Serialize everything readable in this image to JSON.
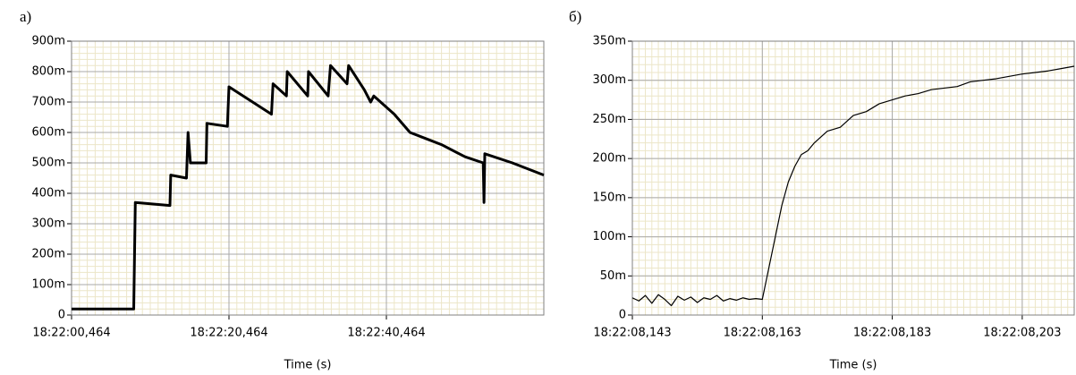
{
  "chart_data": [
    {
      "type": "line",
      "panel_label": "а)",
      "xlabel": "Time (s)",
      "grid": true,
      "minor_grid": true,
      "xlim": [
        66120.464,
        66180.464
      ],
      "xticks": [
        {
          "value": 66120.464,
          "label": "18:22:00,464"
        },
        {
          "value": 66140.464,
          "label": "18:22:20,464"
        },
        {
          "value": 66160.464,
          "label": "18:22:40,464"
        }
      ],
      "ylim": [
        0,
        0.9
      ],
      "yticks": [
        0,
        {
          "value": 0.1,
          "label": "100m"
        },
        {
          "value": 0.2,
          "label": "200m"
        },
        {
          "value": 0.3,
          "label": "300m"
        },
        {
          "value": 0.4,
          "label": "400m"
        },
        {
          "value": 0.5,
          "label": "500m"
        },
        {
          "value": 0.6,
          "label": "600m"
        },
        {
          "value": 0.7,
          "label": "700m"
        },
        {
          "value": 0.8,
          "label": "800m"
        },
        {
          "value": 0.9,
          "label": "900m"
        }
      ],
      "series": [
        {
          "color": "#000000",
          "x": [
            66120.464,
            66128.364,
            66128.564,
            66132.964,
            66133.064,
            66135.064,
            66135.264,
            66135.564,
            66137.564,
            66137.664,
            66140.264,
            66140.464,
            66143.464,
            66145.864,
            66146.064,
            66147.764,
            66147.864,
            66150.464,
            66150.564,
            66153.064,
            66153.364,
            66155.464,
            66155.664,
            66157.664,
            66158.464,
            66158.864,
            66161.464,
            66163.464,
            66165.464,
            66167.464,
            66170.464,
            66172.764,
            66172.864,
            66172.964,
            66176.464,
            66180.464
          ],
          "values": [
            0.02,
            0.02,
            0.37,
            0.36,
            0.46,
            0.45,
            0.6,
            0.5,
            0.5,
            0.63,
            0.62,
            0.75,
            0.7,
            0.66,
            0.76,
            0.72,
            0.8,
            0.72,
            0.8,
            0.72,
            0.82,
            0.76,
            0.82,
            0.74,
            0.7,
            0.72,
            0.66,
            0.6,
            0.58,
            0.56,
            0.52,
            0.5,
            0.37,
            0.53,
            0.5,
            0.46
          ]
        }
      ]
    },
    {
      "type": "line",
      "panel_label": "б)",
      "xlabel": "Time (s)",
      "grid": true,
      "minor_grid": true,
      "xlim": [
        66128.143,
        66128.211
      ],
      "xticks": [
        {
          "value": 66128.143,
          "label": "18:22:08,143"
        },
        {
          "value": 66128.163,
          "label": "18:22:08,163"
        },
        {
          "value": 66128.183,
          "label": "18:22:08,183"
        },
        {
          "value": 66128.203,
          "label": "18:22:08,203"
        }
      ],
      "ylim": [
        0,
        0.35
      ],
      "yticks": [
        0,
        {
          "value": 0.05,
          "label": "50m"
        },
        {
          "value": 0.1,
          "label": "100m"
        },
        {
          "value": 0.15,
          "label": "150m"
        },
        {
          "value": 0.2,
          "label": "200m"
        },
        {
          "value": 0.25,
          "label": "250m"
        },
        {
          "value": 0.3,
          "label": "300m"
        },
        {
          "value": 0.35,
          "label": "350m"
        }
      ],
      "series": [
        {
          "color": "#000000",
          "x": [
            66128.143,
            66128.144,
            66128.145,
            66128.146,
            66128.147,
            66128.148,
            66128.149,
            66128.15,
            66128.151,
            66128.152,
            66128.153,
            66128.154,
            66128.155,
            66128.156,
            66128.157,
            66128.158,
            66128.159,
            66128.16,
            66128.161,
            66128.162,
            66128.163,
            66128.164,
            66128.165,
            66128.166,
            66128.167,
            66128.168,
            66128.169,
            66128.17,
            66128.171,
            66128.173,
            66128.175,
            66128.177,
            66128.179,
            66128.181,
            66128.183,
            66128.185,
            66128.187,
            66128.189,
            66128.191,
            66128.193,
            66128.195,
            66128.197,
            66128.199,
            66128.201,
            66128.203,
            66128.205,
            66128.207,
            66128.209,
            66128.211
          ],
          "values": [
            0.022,
            0.018,
            0.025,
            0.015,
            0.026,
            0.02,
            0.012,
            0.024,
            0.019,
            0.023,
            0.016,
            0.022,
            0.02,
            0.025,
            0.018,
            0.021,
            0.019,
            0.022,
            0.02,
            0.021,
            0.02,
            0.06,
            0.1,
            0.14,
            0.17,
            0.19,
            0.205,
            0.21,
            0.22,
            0.235,
            0.24,
            0.255,
            0.26,
            0.27,
            0.275,
            0.28,
            0.283,
            0.288,
            0.29,
            0.292,
            0.298,
            0.3,
            0.302,
            0.305,
            0.308,
            0.31,
            0.312,
            0.315,
            0.318
          ]
        }
      ]
    }
  ]
}
